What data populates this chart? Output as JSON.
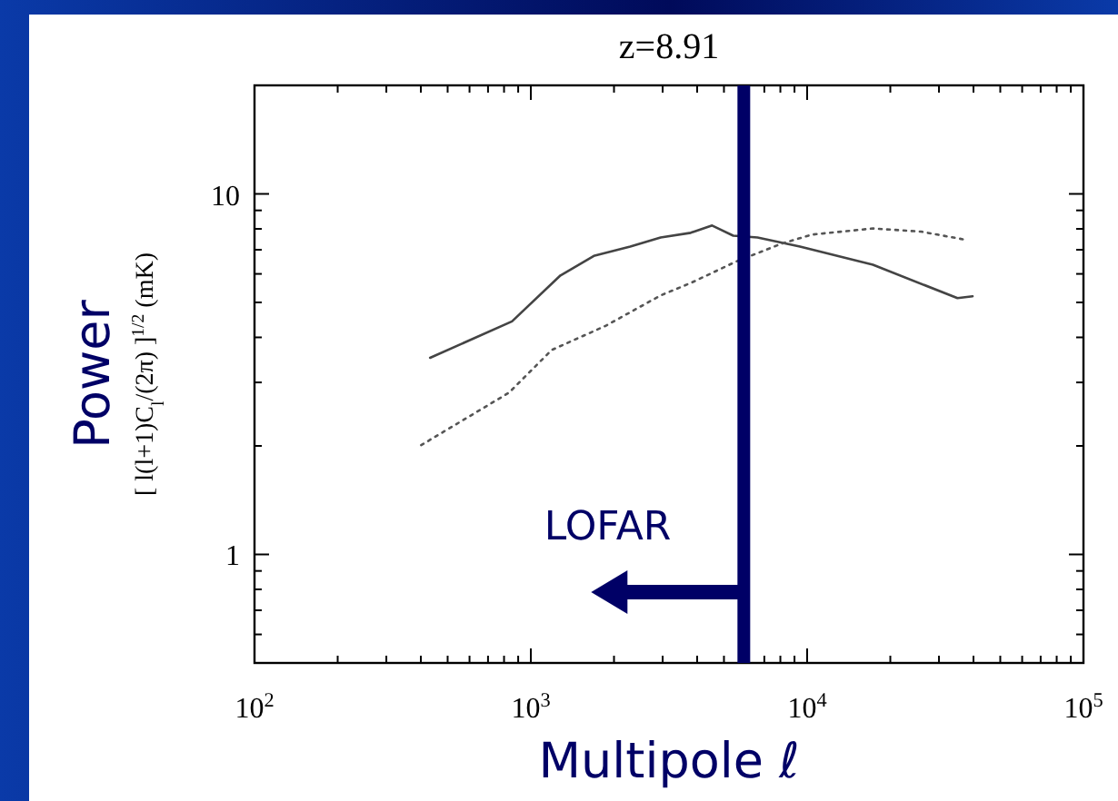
{
  "chart_data": {
    "type": "line",
    "title": "z=8.91",
    "xlabel": "Multipole ℓ",
    "ylabel": "Power\n[ l(l+1)C$_{l}$/(2π) ]$^{1/2}$ (mK)",
    "log": "xy",
    "grid": false,
    "marker": "none",
    "xlim": [
      100,
      100000
    ],
    "ylim": [
      0.5,
      20
    ],
    "xticks": [
      {
        "value": 100,
        "label": "10$^{2}$"
      },
      {
        "value": 200,
        "label": null
      },
      {
        "value": 300,
        "label": null
      },
      {
        "value": 400,
        "label": null
      },
      {
        "value": 500,
        "label": null
      },
      {
        "value": 600,
        "label": null
      },
      {
        "value": 700,
        "label": null
      },
      {
        "value": 800,
        "label": null
      },
      {
        "value": 900,
        "label": null
      },
      {
        "value": 1000,
        "label": "10$^{3}$"
      },
      {
        "value": 2000,
        "label": null
      },
      {
        "value": 3000,
        "label": null
      },
      {
        "value": 4000,
        "label": null
      },
      {
        "value": 5000,
        "label": null
      },
      {
        "value": 6000,
        "label": null
      },
      {
        "value": 7000,
        "label": null
      },
      {
        "value": 8000,
        "label": null
      },
      {
        "value": 9000,
        "label": null
      },
      {
        "value": 10000,
        "label": "10$^{4}$"
      },
      {
        "value": 20000,
        "label": null
      },
      {
        "value": 30000,
        "label": null
      },
      {
        "value": 40000,
        "label": null
      },
      {
        "value": 50000,
        "label": null
      },
      {
        "value": 60000,
        "label": null
      },
      {
        "value": 70000,
        "label": null
      },
      {
        "value": 80000,
        "label": null
      },
      {
        "value": 90000,
        "label": null
      },
      {
        "value": 100000,
        "label": "10$^{5}$"
      }
    ],
    "yticks": [
      {
        "value": 0.5,
        "label": null
      },
      {
        "value": 0.6,
        "label": null
      },
      {
        "value": 0.7,
        "label": null
      },
      {
        "value": 0.8,
        "label": null
      },
      {
        "value": 0.9,
        "label": null
      },
      1,
      {
        "value": 2,
        "label": null
      },
      {
        "value": 3,
        "label": null
      },
      {
        "value": 4,
        "label": null
      },
      {
        "value": 5,
        "label": null
      },
      {
        "value": 6,
        "label": null
      },
      {
        "value": 7,
        "label": null
      },
      {
        "value": 8,
        "label": null
      },
      {
        "value": 9,
        "label": null
      },
      10,
      {
        "value": 20,
        "label": null
      }
    ],
    "series": [
      {
        "color": "#444444",
        "line_style": "solid",
        "x": [
          432,
          855,
          1280,
          1690,
          2290,
          2950,
          3790,
          4530,
          5400,
          6610,
          9420,
          17300,
          35000,
          39700
        ],
        "values": [
          3.51,
          4.43,
          5.94,
          6.73,
          7.14,
          7.57,
          7.8,
          8.17,
          7.66,
          7.57,
          7.14,
          6.36,
          5.14,
          5.2
        ]
      },
      {
        "color": "#555555",
        "line_style": "dotted",
        "x": [
          401,
          834,
          1190,
          1870,
          2950,
          3790,
          5530,
          8090,
          10400,
          17300,
          25800,
          36800
        ],
        "values": [
          2.01,
          2.81,
          3.69,
          4.31,
          5.23,
          5.66,
          6.49,
          7.28,
          7.71,
          8.02,
          7.86,
          7.48
        ]
      }
    ],
    "ref_lines": [
      {
        "axis": "x",
        "value": 5900,
        "color": "#000066",
        "line_style": "solid"
      }
    ],
    "annotations": [
      "LOFAR"
    ]
  }
}
